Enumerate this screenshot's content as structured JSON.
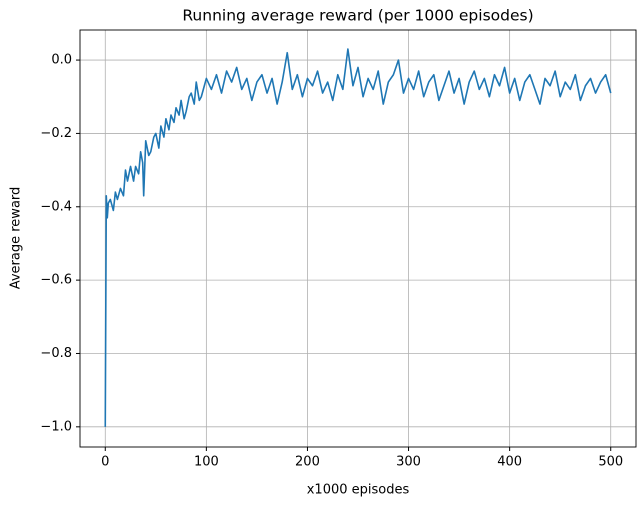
{
  "chart_data": {
    "type": "line",
    "title": "Running average reward (per 1000 episodes)",
    "xlabel": "x1000 episodes",
    "ylabel": "Average reward",
    "color": "#1f77b4",
    "grid": true,
    "x": [
      0,
      1,
      2,
      3,
      5,
      8,
      10,
      12,
      15,
      18,
      20,
      22,
      25,
      28,
      30,
      33,
      35,
      37,
      38,
      40,
      43,
      45,
      48,
      50,
      53,
      55,
      58,
      60,
      63,
      65,
      68,
      70,
      73,
      75,
      78,
      80,
      83,
      85,
      88,
      90,
      93,
      95,
      98,
      100,
      105,
      110,
      115,
      120,
      125,
      130,
      135,
      140,
      145,
      150,
      155,
      160,
      165,
      170,
      175,
      180,
      185,
      190,
      195,
      200,
      205,
      210,
      215,
      220,
      225,
      230,
      235,
      240,
      245,
      250,
      255,
      260,
      265,
      270,
      275,
      280,
      285,
      290,
      295,
      300,
      305,
      310,
      315,
      320,
      325,
      330,
      335,
      340,
      345,
      350,
      355,
      360,
      365,
      370,
      375,
      380,
      385,
      390,
      395,
      400,
      405,
      410,
      415,
      420,
      425,
      430,
      435,
      440,
      445,
      450,
      455,
      460,
      465,
      470,
      475,
      480,
      485,
      490,
      495,
      500
    ],
    "values": [
      -1.0,
      -0.37,
      -0.43,
      -0.39,
      -0.38,
      -0.41,
      -0.36,
      -0.38,
      -0.35,
      -0.37,
      -0.3,
      -0.33,
      -0.29,
      -0.33,
      -0.29,
      -0.31,
      -0.25,
      -0.28,
      -0.37,
      -0.22,
      -0.26,
      -0.25,
      -0.21,
      -0.2,
      -0.24,
      -0.18,
      -0.21,
      -0.16,
      -0.19,
      -0.15,
      -0.17,
      -0.13,
      -0.15,
      -0.11,
      -0.16,
      -0.14,
      -0.1,
      -0.09,
      -0.12,
      -0.06,
      -0.11,
      -0.1,
      -0.07,
      -0.05,
      -0.08,
      -0.04,
      -0.09,
      -0.03,
      -0.06,
      -0.02,
      -0.08,
      -0.05,
      -0.11,
      -0.06,
      -0.04,
      -0.09,
      -0.05,
      -0.12,
      -0.06,
      0.02,
      -0.08,
      -0.04,
      -0.1,
      -0.05,
      -0.07,
      -0.03,
      -0.09,
      -0.06,
      -0.11,
      -0.04,
      -0.08,
      0.03,
      -0.07,
      -0.02,
      -0.1,
      -0.05,
      -0.08,
      -0.03,
      -0.12,
      -0.06,
      -0.04,
      0.0,
      -0.09,
      -0.05,
      -0.08,
      -0.03,
      -0.1,
      -0.06,
      -0.04,
      -0.11,
      -0.07,
      -0.03,
      -0.09,
      -0.05,
      -0.12,
      -0.06,
      -0.03,
      -0.08,
      -0.05,
      -0.1,
      -0.04,
      -0.07,
      -0.02,
      -0.09,
      -0.05,
      -0.11,
      -0.06,
      -0.04,
      -0.08,
      -0.12,
      -0.05,
      -0.07,
      -0.03,
      -0.1,
      -0.06,
      -0.08,
      -0.04,
      -0.11,
      -0.07,
      -0.05,
      -0.09,
      -0.06,
      -0.04,
      -0.09
    ],
    "xlim": [
      -25,
      525
    ],
    "xticks": [
      0,
      100,
      200,
      300,
      400,
      500
    ],
    "ylim": [
      -1.055,
      0.082
    ],
    "yticks": [
      {
        "value": 0.0,
        "label": "0.0"
      },
      {
        "value": -0.2,
        "label": "−0.2"
      },
      {
        "value": -0.4,
        "label": "−0.4"
      },
      {
        "value": -0.6,
        "label": "−0.6"
      },
      {
        "value": -0.8,
        "label": "−0.8"
      },
      {
        "value": -1.0,
        "label": "−1.0"
      }
    ]
  }
}
